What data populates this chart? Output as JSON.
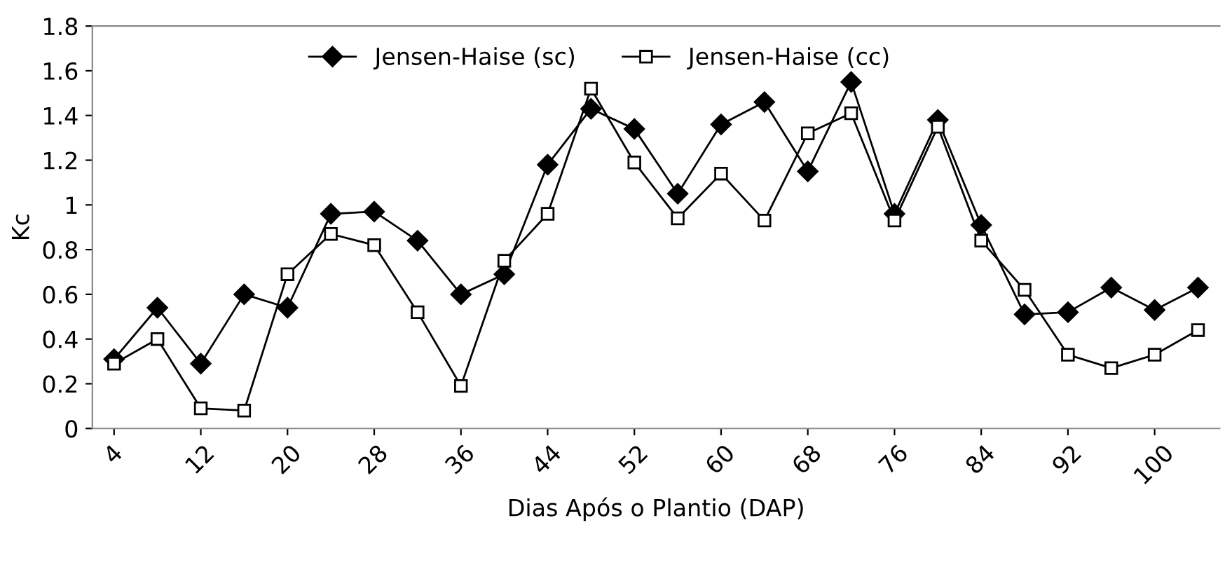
{
  "chart_data": {
    "type": "line",
    "xlabel": "Dias Após o Plantio (DAP)",
    "ylabel": "Kc",
    "categories": [
      "4",
      null,
      "12",
      null,
      "20",
      null,
      "28",
      null,
      "36",
      null,
      "44",
      null,
      "52",
      null,
      "60",
      null,
      "68",
      null,
      "76",
      null,
      "84",
      null,
      "92",
      null,
      "100",
      null
    ],
    "series": [
      {
        "name": "Jensen-Haise (sc)",
        "color": "#000000",
        "marker": "diamond",
        "values": [
          0.31,
          0.54,
          0.29,
          0.6,
          0.54,
          0.96,
          0.97,
          0.84,
          0.6,
          0.69,
          1.18,
          1.43,
          1.34,
          1.05,
          1.36,
          1.46,
          1.15,
          1.55,
          0.96,
          1.38,
          0.91,
          0.51,
          0.52,
          0.63,
          0.53,
          0.63
        ]
      },
      {
        "name": "Jensen-Haise (cc)",
        "color": "#000000",
        "marker": "square",
        "values": [
          0.29,
          0.4,
          0.09,
          0.08,
          0.69,
          0.87,
          0.82,
          0.52,
          0.19,
          0.75,
          0.96,
          1.52,
          1.19,
          0.94,
          1.14,
          0.93,
          1.32,
          1.41,
          0.93,
          1.35,
          0.84,
          0.62,
          0.33,
          0.27,
          0.33,
          0.44
        ]
      }
    ],
    "ylim": [
      0,
      1.8
    ],
    "yticks": [
      0,
      0.2,
      0.4,
      0.6,
      0.8,
      1,
      1.2,
      1.4,
      1.6,
      1.8
    ],
    "grid": false,
    "legend": "top",
    "line_style": "solid"
  }
}
